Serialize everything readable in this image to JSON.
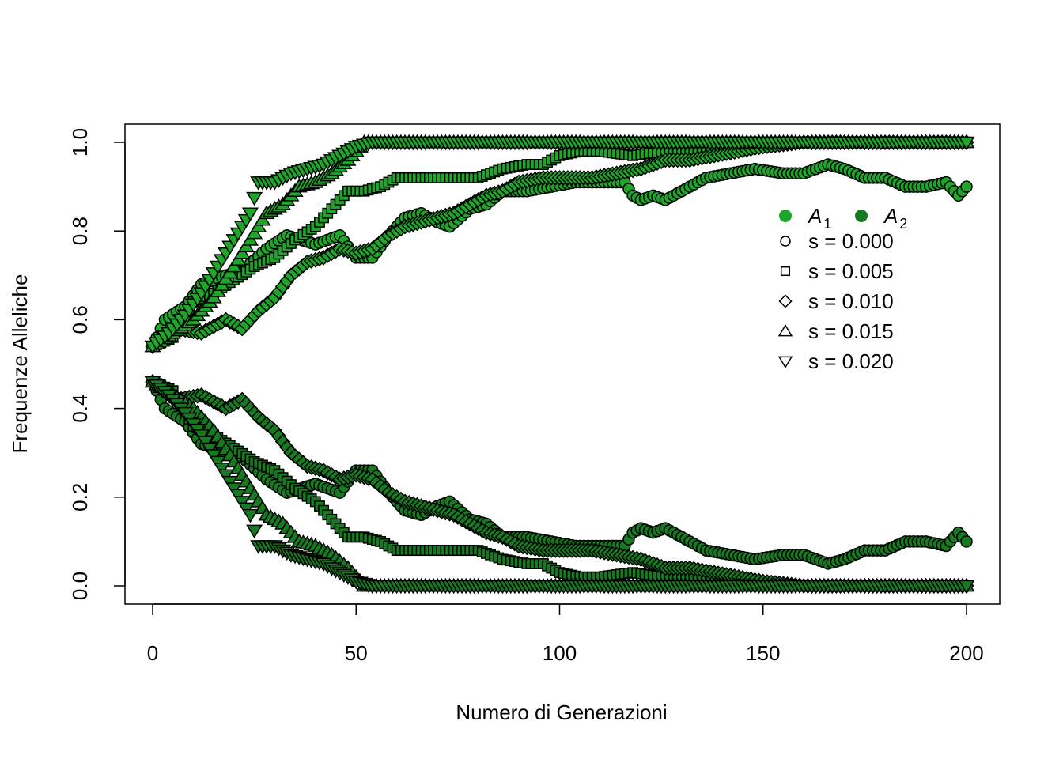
{
  "chart_data": {
    "type": "scatter",
    "title": "",
    "xlabel": "Numero di Generazioni",
    "ylabel": "Frequenze Alleliche",
    "xlim": [
      0,
      200
    ],
    "ylim": [
      0,
      1
    ],
    "x_ticks": [
      "0",
      "50",
      "100",
      "150",
      "200"
    ],
    "y_ticks": [
      "0.0",
      "0.2",
      "0.4",
      "0.6",
      "0.8",
      "1.0"
    ],
    "grid": false,
    "legend_position": "top-right",
    "legend": {
      "alleles": [
        {
          "name": "A",
          "sub": "1",
          "color": "#1fa62a"
        },
        {
          "name": "A",
          "sub": "2",
          "color": "#187a20"
        }
      ],
      "shapes": [
        {
          "label": "s = 0.000",
          "shape": "circle"
        },
        {
          "label": "s = 0.005",
          "shape": "square"
        },
        {
          "label": "s = 0.010",
          "shape": "diamond"
        },
        {
          "label": "s = 0.015",
          "shape": "triangle-up"
        },
        {
          "label": "s = 0.020",
          "shape": "triangle-down"
        }
      ]
    },
    "x_max": 200,
    "series": [
      {
        "s": "0.000",
        "shape": "circle",
        "end": 200,
        "keys": [
          [
            0,
            0.54
          ],
          [
            3,
            0.6
          ],
          [
            8,
            0.63
          ],
          [
            12,
            0.68
          ],
          [
            18,
            0.7
          ],
          [
            22,
            0.71
          ],
          [
            28,
            0.76
          ],
          [
            33,
            0.79
          ],
          [
            40,
            0.77
          ],
          [
            46,
            0.79
          ],
          [
            50,
            0.74
          ],
          [
            54,
            0.74
          ],
          [
            58,
            0.79
          ],
          [
            62,
            0.83
          ],
          [
            66,
            0.84
          ],
          [
            70,
            0.82
          ],
          [
            73,
            0.81
          ],
          [
            78,
            0.85
          ],
          [
            82,
            0.86
          ],
          [
            86,
            0.89
          ],
          [
            92,
            0.89
          ],
          [
            98,
            0.9
          ],
          [
            104,
            0.91
          ],
          [
            110,
            0.91
          ],
          [
            116,
            0.91
          ],
          [
            118,
            0.88
          ],
          [
            120,
            0.87
          ],
          [
            123,
            0.88
          ],
          [
            126,
            0.87
          ],
          [
            130,
            0.89
          ],
          [
            136,
            0.92
          ],
          [
            142,
            0.93
          ],
          [
            148,
            0.94
          ],
          [
            155,
            0.93
          ],
          [
            160,
            0.93
          ],
          [
            166,
            0.95
          ],
          [
            170,
            0.94
          ],
          [
            175,
            0.92
          ],
          [
            180,
            0.92
          ],
          [
            185,
            0.9
          ],
          [
            190,
            0.9
          ],
          [
            195,
            0.91
          ],
          [
            198,
            0.88
          ],
          [
            200,
            0.9
          ]
        ]
      },
      {
        "s": "0.005",
        "shape": "square",
        "end": 200,
        "keys": [
          [
            0,
            0.54
          ],
          [
            5,
            0.56
          ],
          [
            10,
            0.64
          ],
          [
            15,
            0.66
          ],
          [
            20,
            0.69
          ],
          [
            25,
            0.72
          ],
          [
            30,
            0.74
          ],
          [
            35,
            0.78
          ],
          [
            40,
            0.81
          ],
          [
            45,
            0.86
          ],
          [
            48,
            0.89
          ],
          [
            52,
            0.89
          ],
          [
            56,
            0.9
          ],
          [
            60,
            0.92
          ],
          [
            66,
            0.92
          ],
          [
            72,
            0.92
          ],
          [
            76,
            0.92
          ],
          [
            80,
            0.92
          ],
          [
            86,
            0.94
          ],
          [
            92,
            0.95
          ],
          [
            96,
            0.95
          ],
          [
            100,
            0.97
          ],
          [
            105,
            0.98
          ],
          [
            110,
            0.98
          ],
          [
            118,
            0.97
          ],
          [
            126,
            0.98
          ],
          [
            134,
            0.98
          ],
          [
            140,
            0.99
          ],
          [
            146,
            0.99
          ],
          [
            152,
            1.0
          ],
          [
            160,
            1.0
          ],
          [
            200,
            1.0
          ]
        ]
      },
      {
        "s": "0.010",
        "shape": "diamond",
        "end": 200,
        "keys": [
          [
            0,
            0.54
          ],
          [
            6,
            0.58
          ],
          [
            12,
            0.57
          ],
          [
            18,
            0.6
          ],
          [
            22,
            0.58
          ],
          [
            26,
            0.62
          ],
          [
            30,
            0.65
          ],
          [
            34,
            0.7
          ],
          [
            38,
            0.73
          ],
          [
            42,
            0.74
          ],
          [
            46,
            0.76
          ],
          [
            50,
            0.75
          ],
          [
            54,
            0.76
          ],
          [
            58,
            0.79
          ],
          [
            62,
            0.81
          ],
          [
            66,
            0.82
          ],
          [
            70,
            0.83
          ],
          [
            74,
            0.84
          ],
          [
            78,
            0.86
          ],
          [
            82,
            0.88
          ],
          [
            86,
            0.89
          ],
          [
            90,
            0.91
          ],
          [
            96,
            0.92
          ],
          [
            102,
            0.92
          ],
          [
            108,
            0.92
          ],
          [
            114,
            0.93
          ],
          [
            120,
            0.94
          ],
          [
            126,
            0.96
          ],
          [
            132,
            0.96
          ],
          [
            138,
            0.97
          ],
          [
            144,
            0.98
          ],
          [
            150,
            0.99
          ],
          [
            160,
            1.0
          ],
          [
            200,
            1.0
          ]
        ]
      },
      {
        "s": "0.015",
        "shape": "triangle-up",
        "end": 200,
        "keys": [
          [
            0,
            0.54
          ],
          [
            5,
            0.57
          ],
          [
            10,
            0.6
          ],
          [
            15,
            0.65
          ],
          [
            20,
            0.72
          ],
          [
            24,
            0.78
          ],
          [
            28,
            0.84
          ],
          [
            32,
            0.86
          ],
          [
            36,
            0.9
          ],
          [
            40,
            0.91
          ],
          [
            44,
            0.93
          ],
          [
            48,
            0.96
          ],
          [
            52,
            1.0
          ],
          [
            56,
            1.0
          ],
          [
            200,
            1.0
          ]
        ]
      },
      {
        "s": "0.020",
        "shape": "triangle-down",
        "end": 200,
        "keys": [
          [
            0,
            0.54
          ],
          [
            4,
            0.57
          ],
          [
            8,
            0.61
          ],
          [
            12,
            0.66
          ],
          [
            16,
            0.72
          ],
          [
            20,
            0.78
          ],
          [
            24,
            0.84
          ],
          [
            26,
            0.91
          ],
          [
            30,
            0.91
          ],
          [
            34,
            0.93
          ],
          [
            38,
            0.94
          ],
          [
            42,
            0.95
          ],
          [
            46,
            0.97
          ],
          [
            50,
            0.99
          ],
          [
            54,
            1.0
          ],
          [
            200,
            1.0
          ]
        ]
      }
    ]
  }
}
